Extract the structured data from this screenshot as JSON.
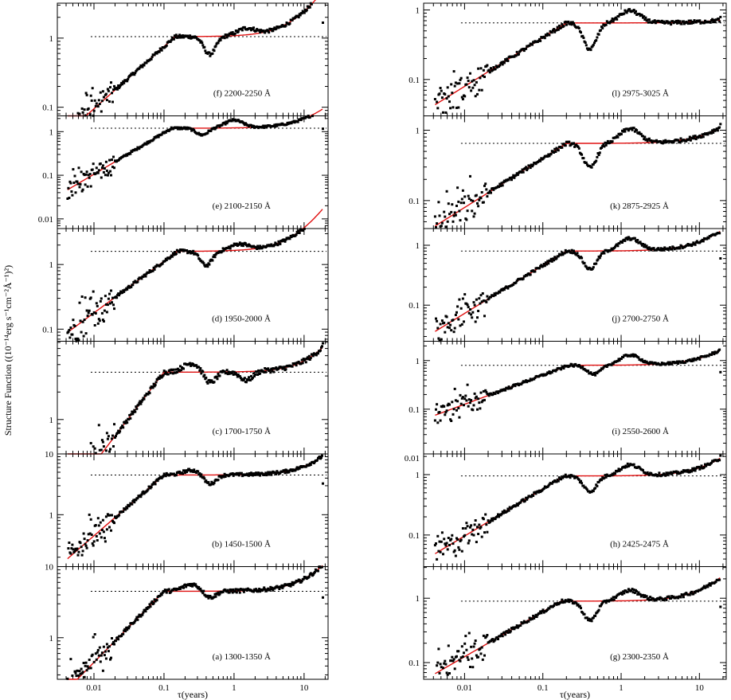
{
  "figure": {
    "ylabel": "Structure Function ((10⁻¹⁴erg s⁻¹cm⁻²Å⁻¹)²)",
    "xlabel_left": "τ(years)",
    "xlabel_right": "τ(years)",
    "xtick_labels": [
      "0.01",
      "0.1",
      "1",
      "10"
    ]
  },
  "chart_data": [
    {
      "type": "scatter",
      "column": "left",
      "label": "(f) 2200-2250 Å",
      "ylim": [
        0.075,
        3.2
      ],
      "ytick_labels": [
        "0.1",
        "1"
      ],
      "yticks": [
        0.1,
        1
      ],
      "plateau": 1.05,
      "fit": {
        "amp": 6.0,
        "slope": 0.9,
        "tau_break": 0.2,
        "rise": 4
      },
      "dips": [
        {
          "t": 0.45,
          "f": 0.55
        }
      ],
      "hi": [
        {
          "t": 1.5,
          "f": 1.25
        }
      ],
      "xlim": [
        0.003,
        22
      ]
    },
    {
      "type": "scatter",
      "column": "left",
      "label": "(e) 2100-2150 Å",
      "ylim": [
        0.006,
        2.3
      ],
      "ytick_labels": [
        "0.01",
        "0.1",
        "1"
      ],
      "yticks": [
        0.01,
        0.1,
        1
      ],
      "plateau": 1.2,
      "fit": {
        "amp": 8.4,
        "slope": 0.95,
        "tau_break": 0.15,
        "rise": 2
      },
      "dips": [
        {
          "t": 0.35,
          "f": 0.7
        }
      ],
      "hi": [
        {
          "t": 1.0,
          "f": 1.5
        }
      ],
      "xlim": [
        0.003,
        22
      ]
    },
    {
      "type": "scatter",
      "column": "left",
      "label": "(d) 1950-2000 Å",
      "ylim": [
        0.065,
        3.6
      ],
      "ytick_labels": [
        "0.1",
        "1"
      ],
      "yticks": [
        0.1,
        1
      ],
      "plateau": 1.6,
      "fit": {
        "amp": 7.1,
        "slope": 0.8,
        "tau_break": 0.25,
        "rise": 4
      },
      "dips": [
        {
          "t": 0.4,
          "f": 0.6
        }
      ],
      "hi": [
        {
          "t": 1.2,
          "f": 1.25
        }
      ],
      "xlim": [
        0.003,
        22
      ]
    },
    {
      "type": "scatter",
      "column": "left",
      "label": "(c) 1700-1750 Å",
      "ylim": [
        0.42,
        7.2
      ],
      "ytick_labels": [
        "1"
      ],
      "yticks": [
        1
      ],
      "plateau": 3.3,
      "fit": {
        "amp": 33,
        "slope": 1.0,
        "tau_break": 0.1,
        "rise": 1
      },
      "dips": [
        {
          "t": 0.45,
          "f": 0.75
        },
        {
          "t": 1.5,
          "f": 0.8
        }
      ],
      "hi": [
        {
          "t": 0.25,
          "f": 1.25
        }
      ],
      "xlim": [
        0.003,
        22
      ]
    },
    {
      "type": "scatter",
      "column": "left",
      "label": "(b) 1450-1500 Å",
      "ylim": [
        0.14,
        10
      ],
      "ytick_labels": [
        "1",
        "10"
      ],
      "yticks": [
        1,
        10
      ],
      "plateau": 4.5,
      "fit": {
        "amp": 45,
        "slope": 1.0,
        "tau_break": 0.1,
        "rise": 1.2
      },
      "dips": [
        {
          "t": 0.45,
          "f": 0.7
        }
      ],
      "hi": [
        {
          "t": 0.25,
          "f": 1.2
        }
      ],
      "xlim": [
        0.003,
        22
      ]
    },
    {
      "type": "scatter",
      "column": "left",
      "label": "(a) 1300-1350 Å",
      "ylim": [
        0.26,
        10
      ],
      "ytick_labels": [
        "1",
        "10"
      ],
      "yticks": [
        1,
        10
      ],
      "plateau": 4.5,
      "fit": {
        "amp": 45,
        "slope": 1.0,
        "tau_break": 0.1,
        "rise": 1.5
      },
      "dips": [
        {
          "t": 0.45,
          "f": 0.8
        }
      ],
      "hi": [
        {
          "t": 0.25,
          "f": 1.25
        }
      ],
      "xlim": [
        0.003,
        22
      ]
    },
    {
      "type": "scatter",
      "column": "right",
      "label": "(l) 2975-3025 Å",
      "ylim": [
        0.03,
        1.25
      ],
      "ytick_labels": [
        "0.1",
        "1"
      ],
      "yticks": [
        0.1,
        1
      ],
      "plateau": 0.65,
      "fit": {
        "amp": 2.0,
        "slope": 0.7,
        "tau_break": 0.2,
        "rise": 0.12
      },
      "dips": [
        {
          "t": 0.4,
          "f": 0.42
        }
      ],
      "hi": [
        {
          "t": 1.3,
          "f": 1.5
        }
      ],
      "xlim": [
        0.003,
        22
      ]
    },
    {
      "type": "scatter",
      "column": "right",
      "label": "(k) 2875-2925 Å",
      "ylim": [
        0.04,
        1.6
      ],
      "ytick_labels": [
        "0.1",
        "1"
      ],
      "yticks": [
        0.1,
        1
      ],
      "plateau": 0.65,
      "fit": {
        "amp": 2.0,
        "slope": 0.7,
        "tau_break": 0.2,
        "rise": 0.8
      },
      "dips": [
        {
          "t": 0.4,
          "f": 0.45
        }
      ],
      "hi": [
        {
          "t": 1.3,
          "f": 1.6
        }
      ],
      "xlim": [
        0.003,
        22
      ]
    },
    {
      "type": "scatter",
      "column": "right",
      "label": "(j) 2700-2750 Å",
      "ylim": [
        0.025,
        1.9
      ],
      "ytick_labels": [
        "0.1",
        "1"
      ],
      "yticks": [
        0.1,
        1
      ],
      "plateau": 0.8,
      "fit": {
        "amp": 2.9,
        "slope": 0.8,
        "tau_break": 0.2,
        "rise": 1.3
      },
      "dips": [
        {
          "t": 0.4,
          "f": 0.5
        }
      ],
      "hi": [
        {
          "t": 1.3,
          "f": 1.6
        }
      ],
      "xlim": [
        0.003,
        22
      ]
    },
    {
      "type": "scatter",
      "column": "right",
      "label": "(i) 2550-2600 Å",
      "ylim": [
        0.012,
        2.5
      ],
      "ytick_labels": [
        "0.01",
        "0.1",
        "1"
      ],
      "yticks": [
        0.01,
        0.1,
        1
      ],
      "plateau": 0.8,
      "fit": {
        "amp": 2.0,
        "slope": 0.6,
        "tau_break": 0.25,
        "rise": 1.2
      },
      "dips": [
        {
          "t": 0.45,
          "f": 0.65
        }
      ],
      "hi": [
        {
          "t": 1.3,
          "f": 1.6
        }
      ],
      "xlim": [
        0.003,
        22
      ]
    },
    {
      "type": "scatter",
      "column": "right",
      "label": "(h) 2425-2475 Å",
      "ylim": [
        0.03,
        2.2
      ],
      "ytick_labels": [
        "0.1",
        "1"
      ],
      "yticks": [
        0.1,
        1
      ],
      "plateau": 0.95,
      "fit": {
        "amp": 3.5,
        "slope": 0.78,
        "tau_break": 0.2,
        "rise": 1.1
      },
      "dips": [
        {
          "t": 0.4,
          "f": 0.55
        }
      ],
      "hi": [
        {
          "t": 1.3,
          "f": 1.5
        }
      ],
      "xlim": [
        0.003,
        22
      ]
    },
    {
      "type": "scatter",
      "column": "right",
      "label": "(g) 2300-2350 Å",
      "ylim": [
        0.055,
        3.1
      ],
      "ytick_labels": [
        "0.1",
        "1"
      ],
      "yticks": [
        0.1,
        1
      ],
      "plateau": 0.9,
      "fit": {
        "amp": 3.1,
        "slope": 0.7,
        "tau_break": 0.2,
        "rise": 1.5
      },
      "dips": [
        {
          "t": 0.4,
          "f": 0.5
        }
      ],
      "hi": [
        {
          "t": 1.3,
          "f": 1.45
        }
      ],
      "xlim": [
        0.003,
        22
      ]
    }
  ]
}
